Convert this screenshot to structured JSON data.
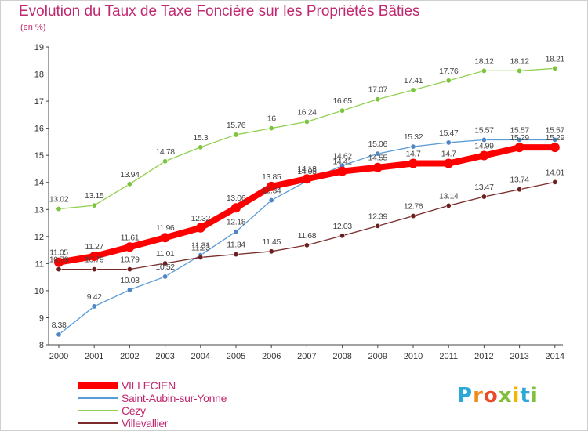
{
  "title": "Evolution du Taux de Taxe Foncière sur les Propriétés Bâties",
  "unit_label": "(en %)",
  "logo": {
    "text": "Proxiti",
    "colors": [
      "#2aa8d8",
      "#f08a1c",
      "#e94c2a",
      "#7fbf3a",
      "#f4b400",
      "#2aa8d8",
      "#7fbf3a"
    ]
  },
  "chart_data": {
    "type": "line",
    "title": "Evolution du Taux de Taxe Foncière sur les Propriétés Bâties",
    "ylabel": "(en %)",
    "xlabel": "",
    "x": [
      "2000",
      "2001",
      "2002",
      "2003",
      "2004",
      "2005",
      "2006",
      "2007",
      "2008",
      "2009",
      "2010",
      "2011",
      "2012",
      "2013",
      "2014"
    ],
    "ylim": [
      8,
      19
    ],
    "yticks": [
      "8",
      "9",
      "10",
      "11",
      "12",
      "13",
      "14",
      "15",
      "16",
      "17",
      "18",
      "19"
    ],
    "grid": false,
    "legend": "bottom-left",
    "series": [
      {
        "name": "VILLECIEN",
        "color": "#ff0000",
        "values": [
          11.05,
          11.27,
          11.61,
          11.96,
          12.32,
          13.06,
          13.85,
          14.13,
          14.41,
          14.55,
          14.7,
          14.7,
          14.99,
          15.29,
          15.29
        ],
        "labels": [
          "11.05",
          "11.27",
          "11.61",
          "11.96",
          "12.32",
          "13.06",
          "13.85",
          "14.13",
          "14.41",
          "14.55",
          "14.7",
          "14.7",
          "14.99",
          "15.29",
          "15.29"
        ]
      },
      {
        "name": "Saint-Aubin-sur-Yonne",
        "color": "#5b9bd5",
        "values": [
          8.38,
          9.42,
          10.03,
          10.52,
          11.31,
          12.18,
          13.34,
          14.05,
          14.62,
          15.06,
          15.32,
          15.47,
          15.57,
          15.57,
          15.57
        ],
        "labels": [
          "8.38",
          "9.42",
          "10.03",
          "10.52",
          "11.31",
          "12.18",
          "13.34",
          "14.05",
          "14.62",
          "15.06",
          "15.32",
          "15.47",
          "15.57",
          "15.57",
          "15.57"
        ]
      },
      {
        "name": "Cézy",
        "color": "#92d050",
        "values": [
          13.02,
          13.15,
          13.94,
          14.78,
          15.3,
          15.76,
          16,
          16.24,
          16.65,
          17.07,
          17.41,
          17.76,
          18.12,
          18.12,
          18.21
        ],
        "labels": [
          "13.02",
          "13.15",
          "13.94",
          "14.78",
          "15.3",
          "15.76",
          "16",
          "16.24",
          "16.65",
          "17.07",
          "17.41",
          "17.76",
          "18.12",
          "18.12",
          "18.21"
        ]
      },
      {
        "name": "Villevallier",
        "color": "#7b2a2a",
        "values": [
          10.79,
          10.79,
          10.79,
          11.01,
          11.23,
          11.34,
          11.45,
          11.68,
          12.03,
          12.39,
          12.76,
          13.14,
          13.47,
          13.74,
          14.01
        ],
        "labels": [
          "10.79",
          "10.79",
          "10.79",
          "11.01",
          "11.23",
          "11.34",
          "11.45",
          "11.68",
          "12.03",
          "12.39",
          "12.76",
          "13.14",
          "13.47",
          "13.74",
          "14.01"
        ]
      }
    ]
  }
}
